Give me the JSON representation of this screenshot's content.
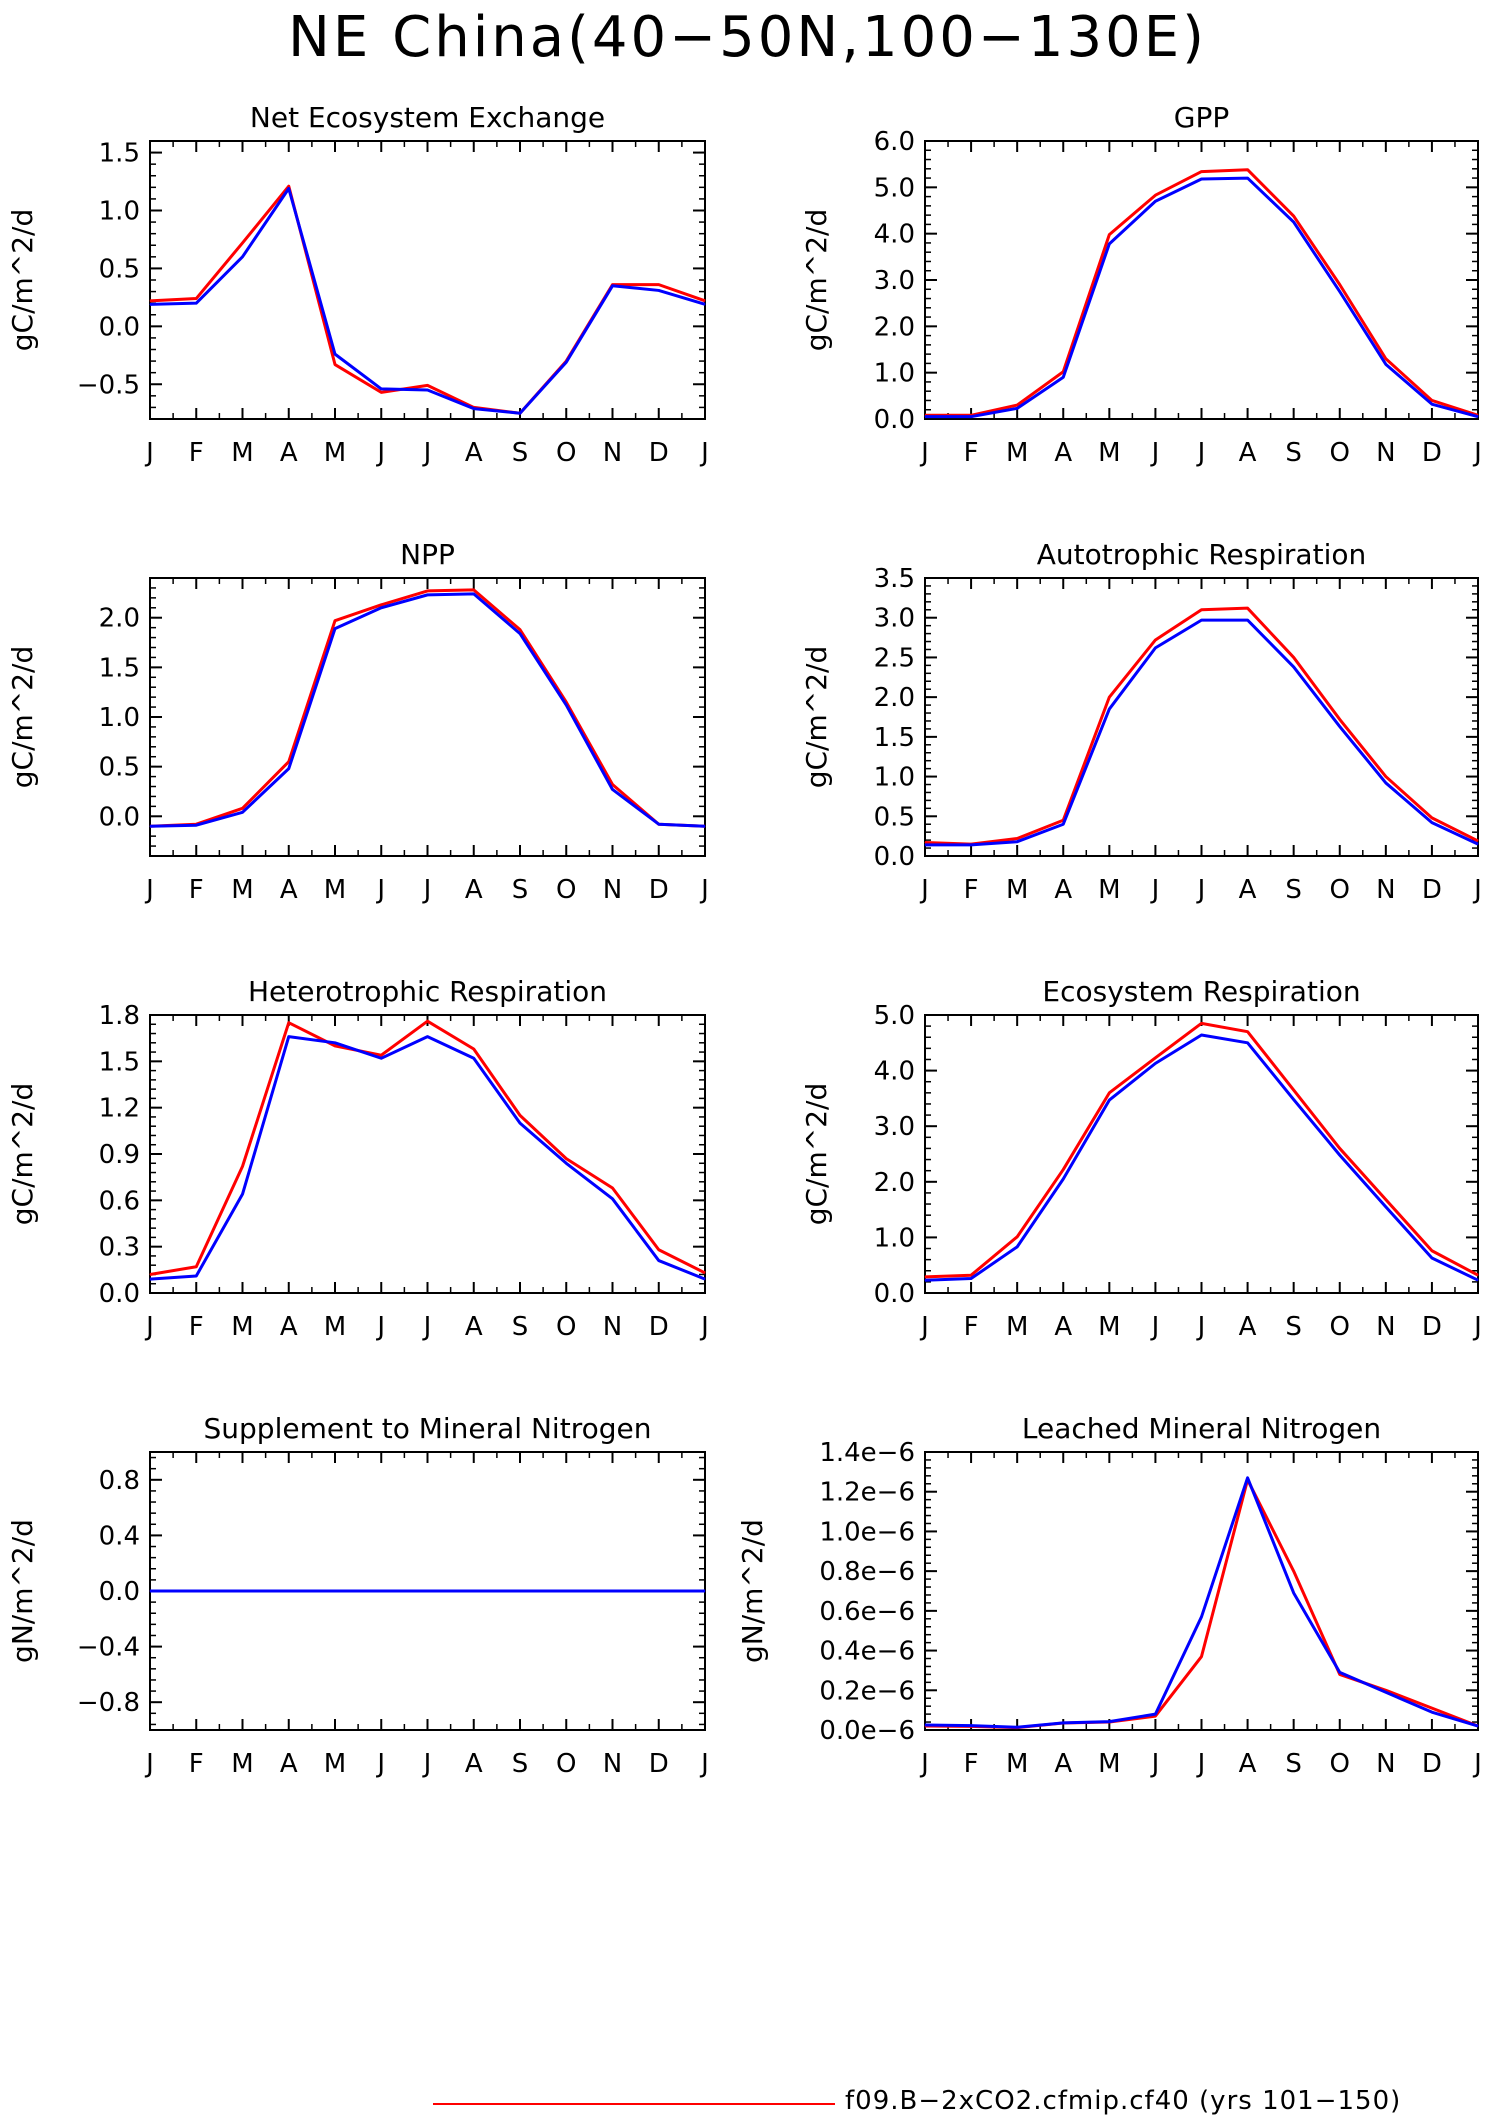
{
  "page": {
    "title": "NE China(40−50N,100−130E)"
  },
  "legend": {
    "label": "f09.B−2xCO2.cfmip.cf40 (yrs 101−150)",
    "color": "#ff0000"
  },
  "colors": {
    "series_a": "#ff0000",
    "series_b": "#0000ff"
  },
  "chart_data": [
    {
      "type": "line",
      "title": "Net Ecosystem Exchange",
      "ylabel": "gC/m^2/d",
      "x": [
        "J",
        "F",
        "M",
        "A",
        "M",
        "J",
        "J",
        "A",
        "S",
        "O",
        "N",
        "D",
        "J"
      ],
      "ylim": [
        -0.8,
        1.6
      ],
      "yticks": [
        -0.5,
        0.0,
        0.5,
        1.0,
        1.5
      ],
      "ytick_labels": [
        "−0.5",
        "0.0",
        "0.5",
        "1.0",
        "1.5"
      ],
      "series": [
        {
          "color": "#ff0000",
          "values": [
            0.22,
            0.24,
            0.72,
            1.21,
            -0.33,
            -0.57,
            -0.51,
            -0.7,
            -0.75,
            -0.3,
            0.36,
            0.36,
            0.22
          ]
        },
        {
          "color": "#0000ff",
          "values": [
            0.19,
            0.2,
            0.6,
            1.19,
            -0.24,
            -0.54,
            -0.55,
            -0.71,
            -0.75,
            -0.31,
            0.35,
            0.31,
            0.19
          ]
        }
      ]
    },
    {
      "type": "line",
      "title": "GPP",
      "ylabel": "gC/m^2/d",
      "x": [
        "J",
        "F",
        "M",
        "A",
        "M",
        "J",
        "J",
        "A",
        "S",
        "O",
        "N",
        "D",
        "J"
      ],
      "ylim": [
        0,
        6.0
      ],
      "yticks": [
        0,
        1,
        2,
        3,
        4,
        5,
        6
      ],
      "ytick_labels": [
        "0.0",
        "1.0",
        "2.0",
        "3.0",
        "4.0",
        "5.0",
        "6.0"
      ],
      "series": [
        {
          "color": "#ff0000",
          "values": [
            0.08,
            0.08,
            0.3,
            1.02,
            3.98,
            4.83,
            5.34,
            5.38,
            4.38,
            2.9,
            1.3,
            0.4,
            0.08
          ]
        },
        {
          "color": "#0000ff",
          "values": [
            0.05,
            0.05,
            0.23,
            0.9,
            3.78,
            4.7,
            5.18,
            5.2,
            4.25,
            2.75,
            1.18,
            0.32,
            0.05
          ]
        }
      ]
    },
    {
      "type": "line",
      "title": "NPP",
      "ylabel": "gC/m^2/d",
      "x": [
        "J",
        "F",
        "M",
        "A",
        "M",
        "J",
        "J",
        "A",
        "S",
        "O",
        "N",
        "D",
        "J"
      ],
      "ylim": [
        -0.4,
        2.4
      ],
      "yticks": [
        0.0,
        0.5,
        1.0,
        1.5,
        2.0
      ],
      "ytick_labels": [
        "0.0",
        "0.5",
        "1.0",
        "1.5",
        "2.0"
      ],
      "series": [
        {
          "color": "#ff0000",
          "values": [
            -0.1,
            -0.08,
            0.08,
            0.55,
            1.97,
            2.13,
            2.27,
            2.28,
            1.88,
            1.15,
            0.32,
            -0.08,
            -0.1
          ]
        },
        {
          "color": "#0000ff",
          "values": [
            -0.1,
            -0.09,
            0.04,
            0.48,
            1.89,
            2.1,
            2.23,
            2.24,
            1.84,
            1.12,
            0.27,
            -0.08,
            -0.1
          ]
        }
      ]
    },
    {
      "type": "line",
      "title": "Autotrophic Respiration",
      "ylabel": "gC/m^2/d",
      "x": [
        "J",
        "F",
        "M",
        "A",
        "M",
        "J",
        "J",
        "A",
        "S",
        "O",
        "N",
        "D",
        "J"
      ],
      "ylim": [
        0,
        3.5
      ],
      "yticks": [
        0.0,
        0.5,
        1.0,
        1.5,
        2.0,
        2.5,
        3.0,
        3.5
      ],
      "ytick_labels": [
        "0.0",
        "0.5",
        "1.0",
        "1.5",
        "2.0",
        "2.5",
        "3.0",
        "3.5"
      ],
      "series": [
        {
          "color": "#ff0000",
          "values": [
            0.17,
            0.15,
            0.22,
            0.45,
            2.0,
            2.72,
            3.1,
            3.12,
            2.5,
            1.72,
            1.0,
            0.48,
            0.19
          ]
        },
        {
          "color": "#0000ff",
          "values": [
            0.14,
            0.14,
            0.18,
            0.4,
            1.85,
            2.62,
            2.97,
            2.97,
            2.38,
            1.63,
            0.92,
            0.42,
            0.15
          ]
        }
      ]
    },
    {
      "type": "line",
      "title": "Heterotrophic Respiration",
      "ylabel": "gC/m^2/d",
      "x": [
        "J",
        "F",
        "M",
        "A",
        "M",
        "J",
        "J",
        "A",
        "S",
        "O",
        "N",
        "D",
        "J"
      ],
      "ylim": [
        0,
        1.8
      ],
      "yticks": [
        0.0,
        0.3,
        0.6,
        0.9,
        1.2,
        1.5,
        1.8
      ],
      "ytick_labels": [
        "0.0",
        "0.3",
        "0.6",
        "0.9",
        "1.2",
        "1.5",
        "1.8"
      ],
      "series": [
        {
          "color": "#ff0000",
          "values": [
            0.12,
            0.17,
            0.82,
            1.75,
            1.6,
            1.54,
            1.76,
            1.58,
            1.15,
            0.87,
            0.68,
            0.28,
            0.13
          ]
        },
        {
          "color": "#0000ff",
          "values": [
            0.09,
            0.11,
            0.64,
            1.66,
            1.62,
            1.52,
            1.66,
            1.52,
            1.1,
            0.84,
            0.61,
            0.21,
            0.09
          ]
        }
      ]
    },
    {
      "type": "line",
      "title": "Ecosystem Respiration",
      "ylabel": "gC/m^2/d",
      "x": [
        "J",
        "F",
        "M",
        "A",
        "M",
        "J",
        "J",
        "A",
        "S",
        "O",
        "N",
        "D",
        "J"
      ],
      "ylim": [
        0,
        5.0
      ],
      "yticks": [
        0,
        1,
        2,
        3,
        4,
        5
      ],
      "ytick_labels": [
        "0.0",
        "1.0",
        "2.0",
        "3.0",
        "4.0",
        "5.0"
      ],
      "series": [
        {
          "color": "#ff0000",
          "values": [
            0.29,
            0.32,
            1.01,
            2.22,
            3.6,
            4.23,
            4.85,
            4.7,
            3.65,
            2.6,
            1.68,
            0.76,
            0.32
          ]
        },
        {
          "color": "#0000ff",
          "values": [
            0.23,
            0.26,
            0.83,
            2.05,
            3.47,
            4.13,
            4.64,
            4.5,
            3.48,
            2.48,
            1.55,
            0.63,
            0.23
          ]
        }
      ]
    },
    {
      "type": "line",
      "title": "Supplement to Mineral Nitrogen",
      "ylabel": "gN/m^2/d",
      "x": [
        "J",
        "F",
        "M",
        "A",
        "M",
        "J",
        "J",
        "A",
        "S",
        "O",
        "N",
        "D",
        "J"
      ],
      "ylim": [
        -1.0,
        1.0
      ],
      "yticks": [
        -0.8,
        -0.4,
        0.0,
        0.4,
        0.8
      ],
      "ytick_labels": [
        "−0.8",
        "−0.4",
        "0.0",
        "0.4",
        "0.8"
      ],
      "series": [
        {
          "color": "#ff0000",
          "values": [
            0,
            0,
            0,
            0,
            0,
            0,
            0,
            0,
            0,
            0,
            0,
            0,
            0
          ]
        },
        {
          "color": "#0000ff",
          "values": [
            0,
            0,
            0,
            0,
            0,
            0,
            0,
            0,
            0,
            0,
            0,
            0,
            0
          ]
        }
      ]
    },
    {
      "type": "line",
      "title": "Leached Mineral Nitrogen",
      "ylabel": "gN/m^2/d",
      "x": [
        "J",
        "F",
        "M",
        "A",
        "M",
        "J",
        "J",
        "A",
        "S",
        "O",
        "N",
        "D",
        "J"
      ],
      "ylim": [
        0,
        1.4e-06
      ],
      "yticks": [
        0,
        2e-07,
        4e-07,
        6e-07,
        8e-07,
        1e-06,
        1.2e-06,
        1.4e-06
      ],
      "ytick_labels": [
        "0.0e−6",
        "0.2e−6",
        "0.4e−6",
        "0.6e−6",
        "0.8e−6",
        "1.0e−6",
        "1.2e−6",
        "1.4e−6"
      ],
      "series": [
        {
          "color": "#ff0000",
          "values": [
            2e-08,
            1.8e-08,
            1.2e-08,
            3.5e-08,
            4e-08,
            7e-08,
            3.7e-07,
            1.26e-06,
            8e-07,
            2.8e-07,
            2e-07,
            1.1e-07,
            2e-08
          ]
        },
        {
          "color": "#0000ff",
          "values": [
            2.5e-08,
            2.2e-08,
            1.4e-08,
            3.6e-08,
            4.2e-08,
            8e-08,
            5.7e-07,
            1.27e-06,
            6.9e-07,
            2.9e-07,
            1.9e-07,
            9e-08,
            2e-08
          ]
        }
      ]
    }
  ]
}
